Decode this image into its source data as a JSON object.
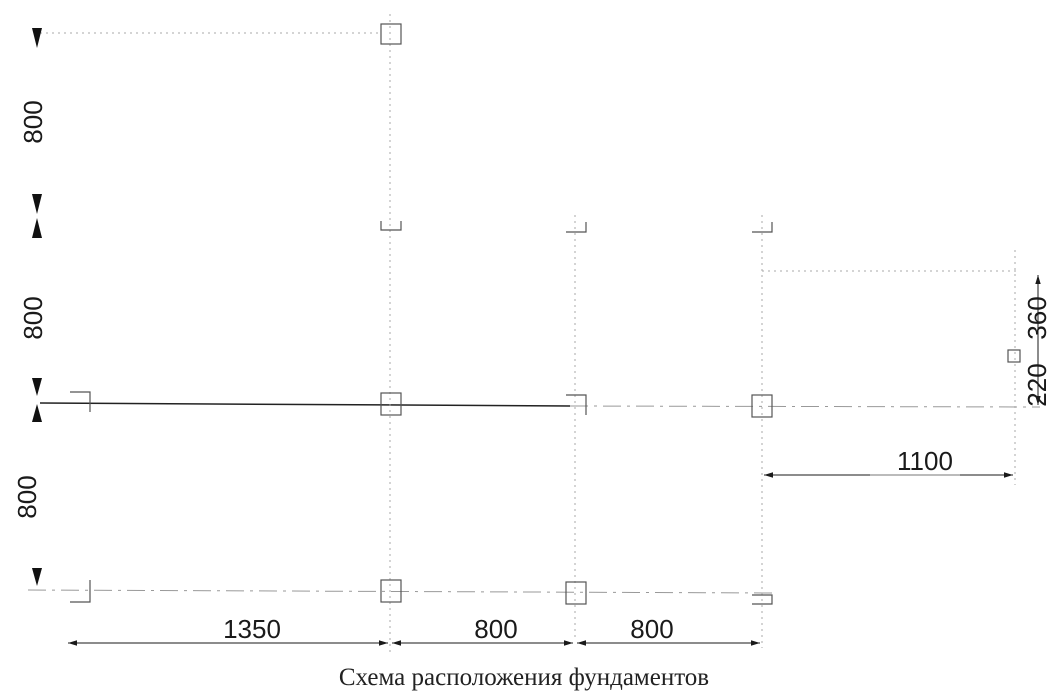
{
  "drawing": {
    "caption": "Схема расположения фундаментов",
    "dimensions": {
      "left_top": "800",
      "left_middle": "800",
      "left_bottom": "800",
      "bottom_first": "1350",
      "bottom_second": "800",
      "bottom_third": "800",
      "right_horizontal": "1100",
      "right_upper": "360",
      "right_lower": "220"
    }
  }
}
